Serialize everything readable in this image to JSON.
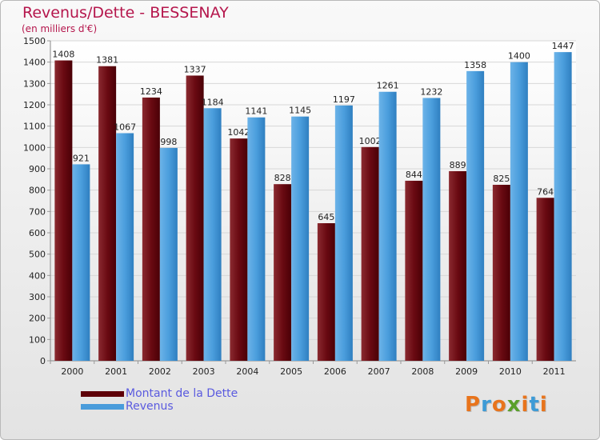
{
  "chart_data": {
    "type": "bar",
    "title": "Revenus/Dette - BESSENAY",
    "subtitle": "(en milliers d'€)",
    "categories": [
      "2000",
      "2001",
      "2002",
      "2003",
      "2004",
      "2005",
      "2006",
      "2007",
      "2008",
      "2009",
      "2010",
      "2011"
    ],
    "series": [
      {
        "name": "Montant de la Dette",
        "color": "#5e0008",
        "values": [
          1408,
          1381,
          1234,
          1337,
          1042,
          828,
          645,
          1002,
          844,
          889,
          825,
          764
        ]
      },
      {
        "name": "Revenus",
        "color": "#4a9cdb",
        "values": [
          921,
          1067,
          998,
          1184,
          1141,
          1145,
          1197,
          1261,
          1232,
          1358,
          1400,
          1447
        ]
      }
    ],
    "ylim": [
      0,
      1500
    ],
    "yticks": [
      0,
      100,
      200,
      300,
      400,
      500,
      600,
      700,
      800,
      900,
      1000,
      1100,
      1200,
      1300,
      1400,
      1500
    ],
    "grid": true,
    "xlabel": "",
    "ylabel": ""
  },
  "logo": {
    "letters": [
      "P",
      "r",
      "o",
      "x",
      "i",
      "t",
      "i"
    ],
    "colors": [
      "#e8741c",
      "#3d9bd6",
      "#e8741c",
      "#5a9f2a",
      "#e8741c",
      "#3d9bd6",
      "#e8741c"
    ]
  }
}
